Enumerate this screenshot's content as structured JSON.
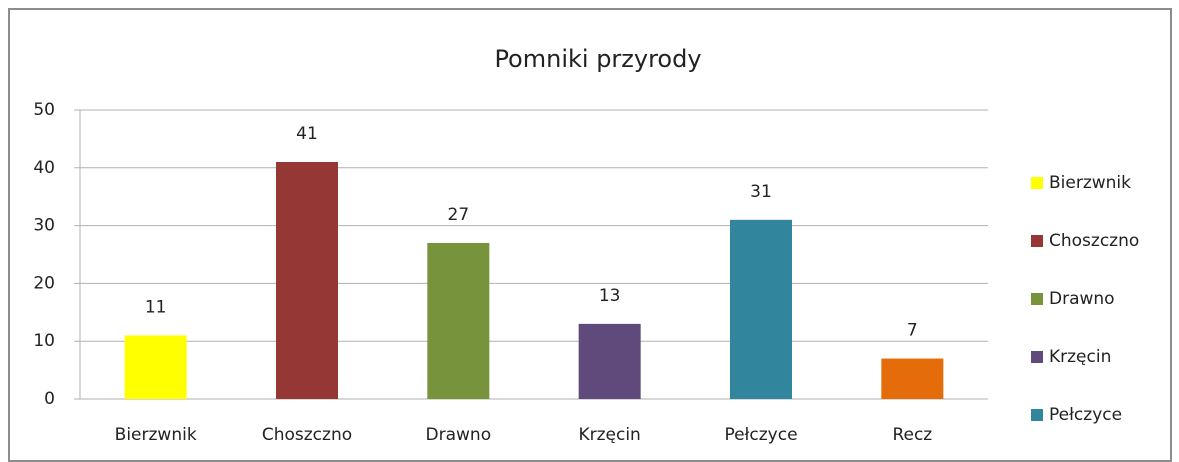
{
  "chart_data": {
    "type": "bar",
    "title": "Pomniki przyrody",
    "categories": [
      "Bierzwnik",
      "Choszczno",
      "Drawno",
      "Krzęcin",
      "Pełczyce",
      "Recz"
    ],
    "values": [
      11,
      41,
      27,
      13,
      31,
      7
    ],
    "colors": [
      "#ffff00",
      "#953735",
      "#77933c",
      "#604a7b",
      "#31859c",
      "#e46c0a"
    ],
    "ylim": [
      0,
      50
    ],
    "yticks": [
      0,
      10,
      20,
      30,
      40,
      50
    ],
    "grid": true,
    "legend": "right"
  }
}
